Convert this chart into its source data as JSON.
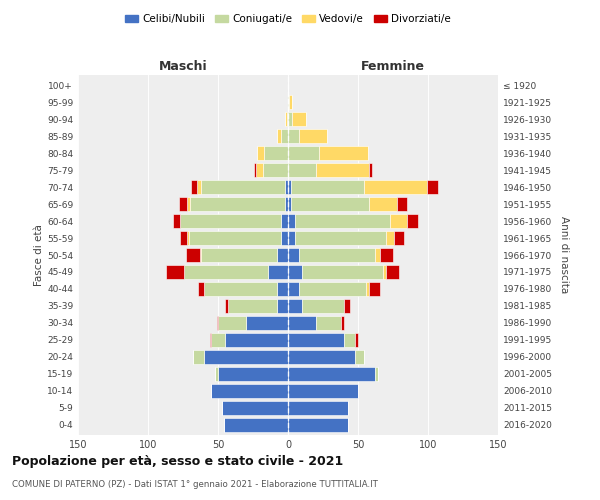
{
  "age_groups": [
    "0-4",
    "5-9",
    "10-14",
    "15-19",
    "20-24",
    "25-29",
    "30-34",
    "35-39",
    "40-44",
    "45-49",
    "50-54",
    "55-59",
    "60-64",
    "65-69",
    "70-74",
    "75-79",
    "80-84",
    "85-89",
    "90-94",
    "95-99",
    "100+"
  ],
  "birth_years": [
    "2016-2020",
    "2011-2015",
    "2006-2010",
    "2001-2005",
    "1996-2000",
    "1991-1995",
    "1986-1990",
    "1981-1985",
    "1976-1980",
    "1971-1975",
    "1966-1970",
    "1961-1965",
    "1956-1960",
    "1951-1955",
    "1946-1950",
    "1941-1945",
    "1936-1940",
    "1931-1935",
    "1926-1930",
    "1921-1925",
    "≤ 1920"
  ],
  "maschi": {
    "celibi": [
      46,
      47,
      55,
      50,
      60,
      45,
      30,
      8,
      8,
      14,
      8,
      5,
      5,
      2,
      2,
      0,
      0,
      0,
      0,
      0,
      0
    ],
    "coniugati": [
      0,
      0,
      0,
      2,
      8,
      10,
      20,
      35,
      52,
      60,
      54,
      66,
      72,
      68,
      60,
      18,
      17,
      5,
      1,
      0,
      0
    ],
    "vedovi": [
      0,
      0,
      0,
      0,
      0,
      0,
      0,
      0,
      0,
      0,
      1,
      1,
      0,
      2,
      3,
      5,
      5,
      3,
      1,
      0,
      0
    ],
    "divorziati": [
      0,
      0,
      0,
      0,
      0,
      1,
      1,
      2,
      4,
      13,
      10,
      5,
      5,
      6,
      4,
      1,
      0,
      0,
      0,
      0,
      0
    ]
  },
  "femmine": {
    "nubili": [
      43,
      43,
      50,
      62,
      48,
      40,
      20,
      10,
      8,
      10,
      8,
      5,
      5,
      2,
      2,
      0,
      0,
      0,
      0,
      0,
      0
    ],
    "coniugate": [
      0,
      0,
      0,
      2,
      6,
      8,
      18,
      30,
      48,
      58,
      54,
      65,
      68,
      56,
      52,
      20,
      22,
      8,
      3,
      1,
      0
    ],
    "vedove": [
      0,
      0,
      0,
      0,
      0,
      0,
      0,
      0,
      2,
      2,
      4,
      6,
      12,
      20,
      45,
      38,
      35,
      20,
      10,
      2,
      0
    ],
    "divorziate": [
      0,
      0,
      0,
      0,
      0,
      2,
      2,
      4,
      8,
      9,
      9,
      7,
      8,
      7,
      8,
      2,
      0,
      0,
      0,
      0,
      0
    ]
  },
  "colors": {
    "celibe": "#4472C4",
    "coniugato": "#c5d9a0",
    "vedovo": "#FFD966",
    "divorziato": "#CC0000"
  },
  "title": "Popolazione per età, sesso e stato civile - 2021",
  "subtitle": "COMUNE DI PATERNO (PZ) - Dati ISTAT 1° gennaio 2021 - Elaborazione TUTTITALIA.IT",
  "xlabel_left": "Maschi",
  "xlabel_right": "Femmine",
  "ylabel_left": "Fasce di età",
  "ylabel_right": "Anni di nascita",
  "xlim": 150,
  "background_color": "#ffffff",
  "plot_bg": "#eeeeee",
  "legend_labels": [
    "Celibi/Nubili",
    "Coniugati/e",
    "Vedovi/e",
    "Divorziati/e"
  ]
}
